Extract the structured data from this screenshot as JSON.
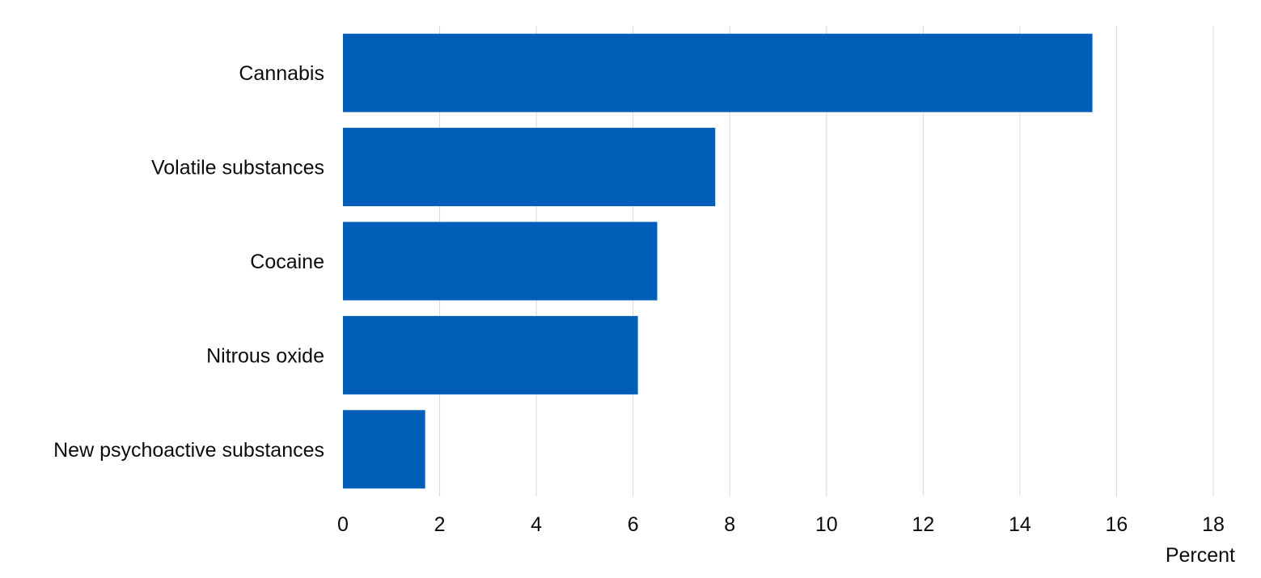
{
  "chart_data": {
    "type": "bar",
    "orientation": "horizontal",
    "title": "",
    "xlabel": "Percent",
    "ylabel": "",
    "categories": [
      "Cannabis",
      "Volatile substances",
      "Cocaine",
      "Nitrous oxide",
      "New psychoactive substances"
    ],
    "values": [
      15.5,
      7.7,
      6.5,
      6.1,
      1.7
    ],
    "xlim": [
      0,
      18
    ],
    "xticks": [
      "0",
      "2",
      "4",
      "6",
      "8",
      "10",
      "12",
      "14",
      "16",
      "18"
    ],
    "grid": "vertical",
    "bar_color": "#005eb8",
    "gridline_color": "#d9d9d9",
    "text_color": "#0b0c0c"
  }
}
